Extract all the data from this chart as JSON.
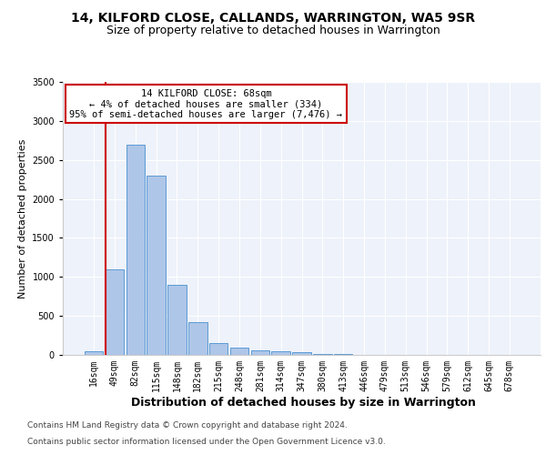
{
  "title1": "14, KILFORD CLOSE, CALLANDS, WARRINGTON, WA5 9SR",
  "title2": "Size of property relative to detached houses in Warrington",
  "xlabel": "Distribution of detached houses by size in Warrington",
  "ylabel": "Number of detached properties",
  "footnote1": "Contains HM Land Registry data © Crown copyright and database right 2024.",
  "footnote2": "Contains public sector information licensed under the Open Government Licence v3.0.",
  "annotation_line1": "14 KILFORD CLOSE: 68sqm",
  "annotation_line2": "← 4% of detached houses are smaller (334)",
  "annotation_line3": "95% of semi-detached houses are larger (7,476) →",
  "bar_color": "#aec6e8",
  "bar_edge_color": "#5b9bd5",
  "redline_color": "#cc0000",
  "background_color": "#eef2fa",
  "categories": [
    "16sqm",
    "49sqm",
    "82sqm",
    "115sqm",
    "148sqm",
    "182sqm",
    "215sqm",
    "248sqm",
    "281sqm",
    "314sqm",
    "347sqm",
    "380sqm",
    "413sqm",
    "446sqm",
    "479sqm",
    "513sqm",
    "546sqm",
    "579sqm",
    "612sqm",
    "645sqm",
    "678sqm"
  ],
  "values": [
    50,
    1100,
    2700,
    2300,
    900,
    420,
    155,
    90,
    55,
    45,
    35,
    10,
    8,
    5,
    3,
    2,
    1,
    1,
    0,
    0,
    0
  ],
  "ylim": [
    0,
    3500
  ],
  "yticks": [
    0,
    500,
    1000,
    1500,
    2000,
    2500,
    3000,
    3500
  ],
  "redline_bin_index": 1,
  "title1_fontsize": 10,
  "title2_fontsize": 9,
  "ylabel_fontsize": 8,
  "xlabel_fontsize": 9,
  "footnote_fontsize": 6.5,
  "tick_fontsize": 7,
  "annotation_fontsize": 7.5
}
